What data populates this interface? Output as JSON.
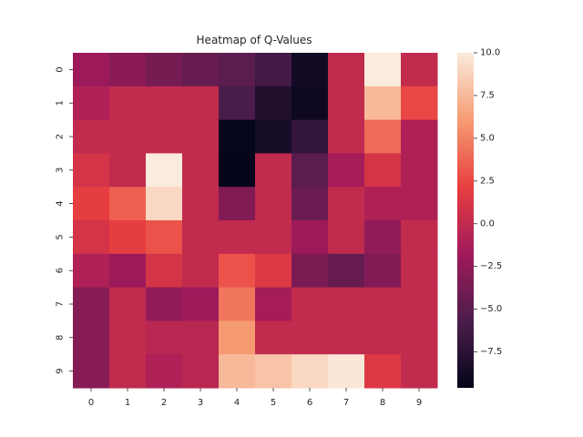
{
  "chart_data": {
    "type": "heatmap",
    "title": "Heatmap of Q-Values",
    "x_ticks": [
      "0",
      "1",
      "2",
      "3",
      "4",
      "5",
      "6",
      "7",
      "8",
      "9"
    ],
    "y_ticks": [
      "0",
      "1",
      "2",
      "3",
      "4",
      "5",
      "6",
      "7",
      "8",
      "9"
    ],
    "values": [
      [
        -2.0,
        -2.8,
        -3.8,
        -4.5,
        -5.0,
        -6.2,
        -8.8,
        0.0,
        10.0,
        0.0
      ],
      [
        -1.0,
        0.0,
        0.0,
        0.0,
        -5.8,
        -8.0,
        -9.0,
        0.0,
        7.5,
        2.5
      ],
      [
        0.0,
        0.0,
        0.0,
        0.0,
        -9.5,
        -8.5,
        -7.0,
        0.0,
        4.0,
        -1.0
      ],
      [
        1.0,
        0.0,
        10.0,
        0.0,
        -9.6,
        0.0,
        -5.0,
        -1.5,
        1.0,
        -1.0
      ],
      [
        2.0,
        3.5,
        9.0,
        0.0,
        -3.2,
        0.0,
        -4.3,
        0.0,
        -1.0,
        -1.0
      ],
      [
        1.0,
        2.0,
        3.0,
        0.0,
        0.0,
        0.0,
        -2.0,
        0.0,
        -2.5,
        0.0
      ],
      [
        -1.0,
        -2.0,
        1.0,
        0.0,
        3.0,
        1.5,
        -3.5,
        -4.5,
        -3.2,
        0.0
      ],
      [
        -3.0,
        0.0,
        -2.5,
        -2.0,
        4.5,
        -1.5,
        0.0,
        0.0,
        0.0,
        0.0
      ],
      [
        -3.0,
        0.0,
        -0.5,
        -0.5,
        6.0,
        0.0,
        0.0,
        0.0,
        0.0,
        0.0
      ],
      [
        -3.0,
        0.0,
        -1.0,
        -0.5,
        7.5,
        8.0,
        9.0,
        9.8,
        1.5,
        0.0
      ]
    ],
    "colorbar": {
      "vmin": -9.6,
      "vmax": 10.0,
      "ticks": [
        10.0,
        7.5,
        5.0,
        2.5,
        0.0,
        -2.5,
        -5.0,
        -7.5
      ],
      "tick_labels": [
        "10.0",
        "7.5",
        "5.0",
        "2.5",
        "0.0",
        "−2.5",
        "−5.0",
        "−7.5"
      ],
      "colormap": "rocket",
      "colormap_stops": [
        "#03051a",
        "#4c1d4b",
        "#a11a5b",
        "#e83f3f",
        "#f69c73",
        "#faebdd"
      ]
    }
  }
}
